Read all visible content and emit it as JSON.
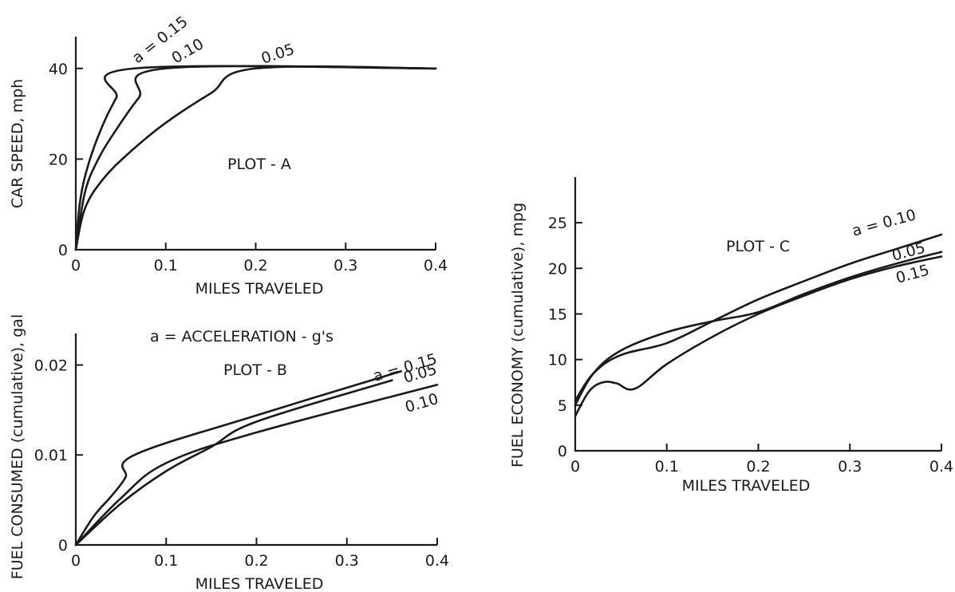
{
  "figure": {
    "accel_note": "a = ACCELERATION - g's"
  },
  "chart_data": [
    {
      "id": "A",
      "type": "line",
      "title": "",
      "annotation": "PLOT - A",
      "xlabel": "MILES TRAVELED",
      "ylabel": "CAR SPEED, mph",
      "xlim": [
        0,
        0.4
      ],
      "ylim": [
        0,
        47
      ],
      "xticks": [
        0,
        0.1,
        0.2,
        0.3,
        0.4
      ],
      "xtick_labels": [
        "0",
        "0.1",
        "0.2",
        "0.3",
        "0.4"
      ],
      "yticks": [
        0,
        20,
        40
      ],
      "ytick_labels": [
        "0",
        "20",
        "40"
      ],
      "grid": false,
      "series": [
        {
          "name": "a = 0.15",
          "x": [
            0,
            0.005,
            0.015,
            0.03,
            0.045,
            0.065,
            0.4
          ],
          "y": [
            0,
            11,
            19.5,
            27.5,
            33.5,
            40,
            40
          ]
        },
        {
          "name": "0.10",
          "x": [
            0,
            0.01,
            0.025,
            0.045,
            0.07,
            0.1,
            0.4
          ],
          "y": [
            0,
            12.5,
            20,
            26.5,
            33.5,
            40,
            40
          ]
        },
        {
          "name": "0.05",
          "x": [
            0,
            0.01,
            0.03,
            0.06,
            0.1,
            0.15,
            0.2,
            0.4
          ],
          "y": [
            0,
            9,
            15.5,
            21.5,
            28,
            34.5,
            40,
            40
          ]
        }
      ]
    },
    {
      "id": "B",
      "type": "line",
      "title": "",
      "annotation": "PLOT - B",
      "xlabel": "MILES TRAVELED",
      "ylabel": "FUEL CONSUMED (cumulative), gal",
      "xlim": [
        0,
        0.4
      ],
      "ylim": [
        0,
        0.0235
      ],
      "xticks": [
        0,
        0.1,
        0.2,
        0.3,
        0.4
      ],
      "xtick_labels": [
        "0",
        "0.1",
        "0.2",
        "0.3",
        "0.4"
      ],
      "yticks": [
        0,
        0.01,
        0.02
      ],
      "ytick_labels": [
        "0",
        "0.01",
        "0.02"
      ],
      "grid": false,
      "series": [
        {
          "name": "a = 0.15",
          "x": [
            0,
            0.02,
            0.04,
            0.055,
            0.065,
            0.2,
            0.36
          ],
          "y": [
            0,
            0.0032,
            0.0055,
            0.0075,
            0.01,
            0.0144,
            0.0193
          ]
        },
        {
          "name": "0.05",
          "x": [
            0,
            0.05,
            0.1,
            0.15,
            0.2,
            0.35
          ],
          "y": [
            0,
            0.0046,
            0.0082,
            0.0109,
            0.0137,
            0.0183
          ]
        },
        {
          "name": "0.10",
          "x": [
            0,
            0.05,
            0.1,
            0.2,
            0.4
          ],
          "y": [
            0,
            0.0052,
            0.0091,
            0.0125,
            0.0178
          ]
        }
      ]
    },
    {
      "id": "C",
      "type": "line",
      "title": "",
      "annotation": "PLOT - C",
      "xlabel": "MILES TRAVELED",
      "ylabel": "FUEL ECONOMY (cumulative), mpg",
      "xlim": [
        0,
        0.4
      ],
      "ylim": [
        0,
        30
      ],
      "xticks": [
        0,
        0.1,
        0.2,
        0.3,
        0.4
      ],
      "xtick_labels": [
        "0",
        "0.1",
        "0.2",
        "0.3",
        "0.4"
      ],
      "yticks": [
        0,
        5,
        10,
        15,
        20,
        25
      ],
      "ytick_labels": [
        "0",
        "5",
        "10",
        "15",
        "20",
        "25"
      ],
      "grid": false,
      "series": [
        {
          "name": "a = 0.10",
          "x": [
            0,
            0.02,
            0.05,
            0.1,
            0.15,
            0.2,
            0.25,
            0.3,
            0.35,
            0.4
          ],
          "y": [
            5.5,
            8.5,
            10.5,
            11.8,
            14.2,
            16.6,
            18.6,
            20.5,
            22.1,
            23.7
          ]
        },
        {
          "name": "0.05",
          "x": [
            0,
            0.02,
            0.05,
            0.1,
            0.15,
            0.2,
            0.25,
            0.3,
            0.35,
            0.4
          ],
          "y": [
            5,
            8.5,
            11,
            13,
            14.2,
            15.2,
            17.2,
            19,
            20.5,
            21.8
          ]
        },
        {
          "name": "0.15",
          "x": [
            0,
            0.015,
            0.03,
            0.045,
            0.065,
            0.1,
            0.15,
            0.2,
            0.25,
            0.3,
            0.35,
            0.4
          ],
          "y": [
            3.8,
            6.5,
            7.5,
            7.4,
            6.8,
            9.5,
            12.5,
            15,
            17,
            18.8,
            20.2,
            21.3
          ]
        }
      ]
    }
  ]
}
